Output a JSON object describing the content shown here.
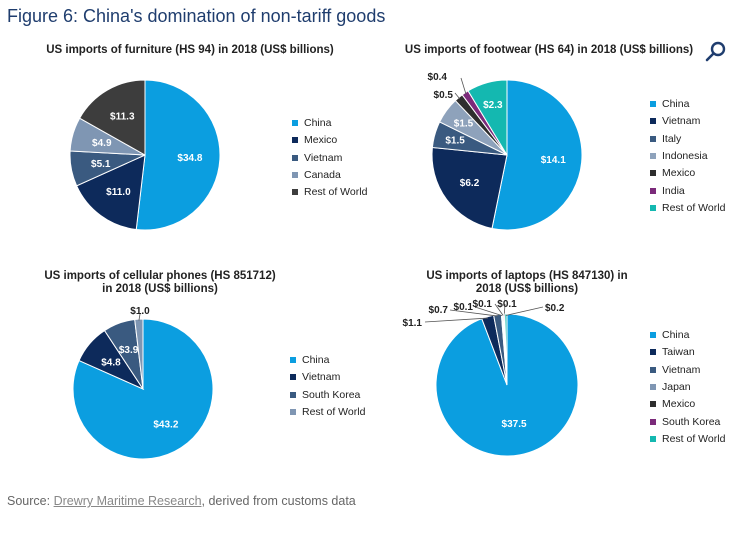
{
  "figure_title": "Figure 6: China's domination of non-tariff goods",
  "source": {
    "prefix": "Source:",
    "link": "Drewry Maritime Research",
    "suffix": ", derived from customs data"
  },
  "colors": {
    "China": "#0b9ee0",
    "Mexico": "#0d2a5b",
    "Vietnam": "#3a5a80",
    "Canada": "#7f96b3",
    "Italy": "#4f6b8e",
    "Indonesia": "#8ea2bb",
    "India": "#7b2a7a",
    "Taiwan": "#0d2a5b",
    "Japan": "#7f96b3",
    "South Korea": "#7b2a7a",
    "Rest of World": "#2e2e2e",
    "RestOfWorld_footwear": "#14b8b0",
    "RestOfWorld_phones": "#7f96b3",
    "RestOfWorld_laptops": "#14b8b0"
  },
  "chart_data": [
    {
      "type": "pie",
      "title": "US imports of furniture (HS 94) in 2018 (US$ billions)",
      "categories": [
        "China",
        "Mexico",
        "Vietnam",
        "Canada",
        "Rest of World"
      ],
      "values": [
        34.8,
        11.0,
        5.1,
        4.9,
        11.3
      ],
      "labels": [
        "$34.8",
        "$11.0",
        "$5.1",
        "$4.9",
        "$11.3"
      ],
      "colors": [
        "#0b9ee0",
        "#0d2a5b",
        "#3a5a80",
        "#7f96b3",
        "#3d3d3d"
      ],
      "legend": "right"
    },
    {
      "type": "pie",
      "title": "US imports of footwear (HS 64) in 2018 (US$ billions)",
      "categories": [
        "China",
        "Vietnam",
        "Italy",
        "Indonesia",
        "Mexico",
        "India",
        "Rest of World"
      ],
      "values": [
        14.1,
        6.2,
        1.5,
        1.5,
        0.5,
        0.4,
        2.3
      ],
      "labels": [
        "$14.1",
        "$6.2",
        "$1.5",
        "$1.5",
        "$0.5",
        "$0.4",
        "$2.3"
      ],
      "colors": [
        "#0b9ee0",
        "#0d2a5b",
        "#3a5a80",
        "#8ea2bb",
        "#2e2e2e",
        "#7b2a7a",
        "#14b8b0"
      ],
      "legend": "right"
    },
    {
      "type": "pie",
      "title": "US imports of cellular phones (HS 851712) in 2018 (US$ billions)",
      "categories": [
        "China",
        "Vietnam",
        "South Korea",
        "Rest of World"
      ],
      "values": [
        43.2,
        4.8,
        3.9,
        1.0
      ],
      "labels": [
        "$43.2",
        "$4.8",
        "$3.9",
        "$1.0"
      ],
      "colors": [
        "#0b9ee0",
        "#0d2a5b",
        "#3a5a80",
        "#7f96b3"
      ],
      "legend": "right"
    },
    {
      "type": "pie",
      "title": "US imports of laptops (HS 847130) in 2018 (US$ billions)",
      "categories": [
        "China",
        "Taiwan",
        "Vietnam",
        "Japan",
        "Mexico",
        "South Korea",
        "Rest of World"
      ],
      "values": [
        37.5,
        1.1,
        0.7,
        0.1,
        0.1,
        0.1,
        0.2
      ],
      "labels": [
        "$37.5",
        "$1.1",
        "$0.7",
        "$0.1",
        "$0.1",
        "$0.1",
        "$0.2"
      ],
      "colors": [
        "#0b9ee0",
        "#0d2a5b",
        "#3a5a80",
        "#7f96b3",
        "#2e2e2e",
        "#7b2a7a",
        "#14b8b0"
      ],
      "legend": "right"
    }
  ]
}
